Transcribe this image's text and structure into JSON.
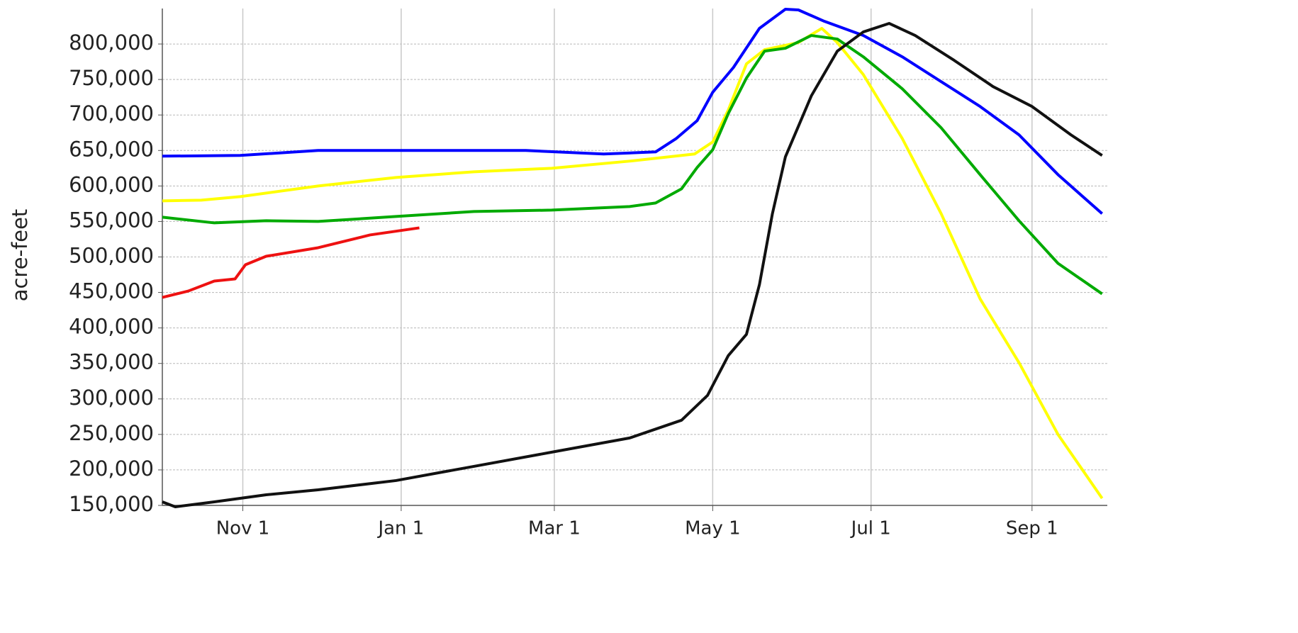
{
  "chart_data": {
    "type": "line",
    "y_label": "acre-feet",
    "xlim": [
      0,
      364
    ],
    "xticks": [
      {
        "value": 31,
        "label": "Nov 1"
      },
      {
        "value": 92,
        "label": "Jan 1"
      },
      {
        "value": 151,
        "label": "Mar 1"
      },
      {
        "value": 212,
        "label": "May 1"
      },
      {
        "value": 273,
        "label": "Jul 1"
      },
      {
        "value": 335,
        "label": "Sep 1"
      }
    ],
    "ylim": [
      150000,
      850000
    ],
    "yticks": [
      {
        "value": 150000,
        "label": "150,000"
      },
      {
        "value": 200000,
        "label": "200,000"
      },
      {
        "value": 250000,
        "label": "250,000"
      },
      {
        "value": 300000,
        "label": "300,000"
      },
      {
        "value": 350000,
        "label": "350,000"
      },
      {
        "value": 400000,
        "label": "400,000"
      },
      {
        "value": 450000,
        "label": "450,000"
      },
      {
        "value": 500000,
        "label": "500,000"
      },
      {
        "value": 550000,
        "label": "550,000"
      },
      {
        "value": 600000,
        "label": "600,000"
      },
      {
        "value": 650000,
        "label": "650,000"
      },
      {
        "value": 700000,
        "label": "700,000"
      },
      {
        "value": 750000,
        "label": "750,000"
      },
      {
        "value": 800000,
        "label": "800,000"
      }
    ],
    "grid": true,
    "series": [
      {
        "color": "#0000ff",
        "x": [
          0,
          30,
          60,
          90,
          140,
          170,
          190,
          198,
          206,
          212,
          220,
          230,
          240,
          245,
          255,
          270,
          285,
          300,
          315,
          330,
          345,
          362
        ],
        "values": [
          642000,
          643000,
          650000,
          650000,
          650000,
          645000,
          648000,
          667000,
          692000,
          732000,
          767000,
          822000,
          849000,
          848000,
          832000,
          812000,
          782000,
          747000,
          712000,
          672000,
          616000,
          561000
        ]
      },
      {
        "color": "#ffff00",
        "x": [
          0,
          15,
          30,
          60,
          90,
          120,
          150,
          180,
          205,
          212,
          218,
          225,
          232,
          245,
          254,
          260,
          270,
          285,
          300,
          315,
          330,
          345,
          362
        ],
        "values": [
          579000,
          580000,
          585000,
          600000,
          612000,
          620000,
          625000,
          635000,
          645000,
          662000,
          707000,
          772000,
          792000,
          802000,
          822000,
          802000,
          757000,
          667000,
          561000,
          441000,
          351000,
          250000,
          160000
        ]
      },
      {
        "color": "#00aa00",
        "x": [
          0,
          20,
          40,
          60,
          90,
          120,
          150,
          180,
          190,
          200,
          206,
          212,
          218,
          225,
          232,
          240,
          250,
          260,
          270,
          285,
          300,
          315,
          330,
          345,
          362
        ],
        "values": [
          556000,
          548000,
          551000,
          550000,
          557000,
          564000,
          566000,
          571000,
          576000,
          596000,
          626000,
          651000,
          702000,
          752000,
          790000,
          794000,
          812000,
          807000,
          782000,
          737000,
          682000,
          616000,
          551000,
          491000,
          448000
        ]
      },
      {
        "color": "#ee1111",
        "x": [
          0,
          10,
          20,
          28,
          32,
          40,
          60,
          80,
          99
        ],
        "values": [
          443000,
          452000,
          466000,
          469000,
          489000,
          501000,
          513000,
          531000,
          541000
        ]
      },
      {
        "color": "#111111",
        "x": [
          0,
          5,
          20,
          40,
          60,
          90,
          120,
          150,
          180,
          200,
          210,
          218,
          225,
          230,
          235,
          240,
          250,
          260,
          270,
          280,
          290,
          305,
          320,
          335,
          350,
          362
        ],
        "values": [
          155000,
          148000,
          155000,
          165000,
          172000,
          185000,
          205000,
          225000,
          245000,
          270000,
          305000,
          361000,
          391000,
          461000,
          561000,
          641000,
          727000,
          790000,
          817000,
          829000,
          812000,
          777000,
          740000,
          712000,
          672000,
          643000
        ]
      }
    ]
  }
}
